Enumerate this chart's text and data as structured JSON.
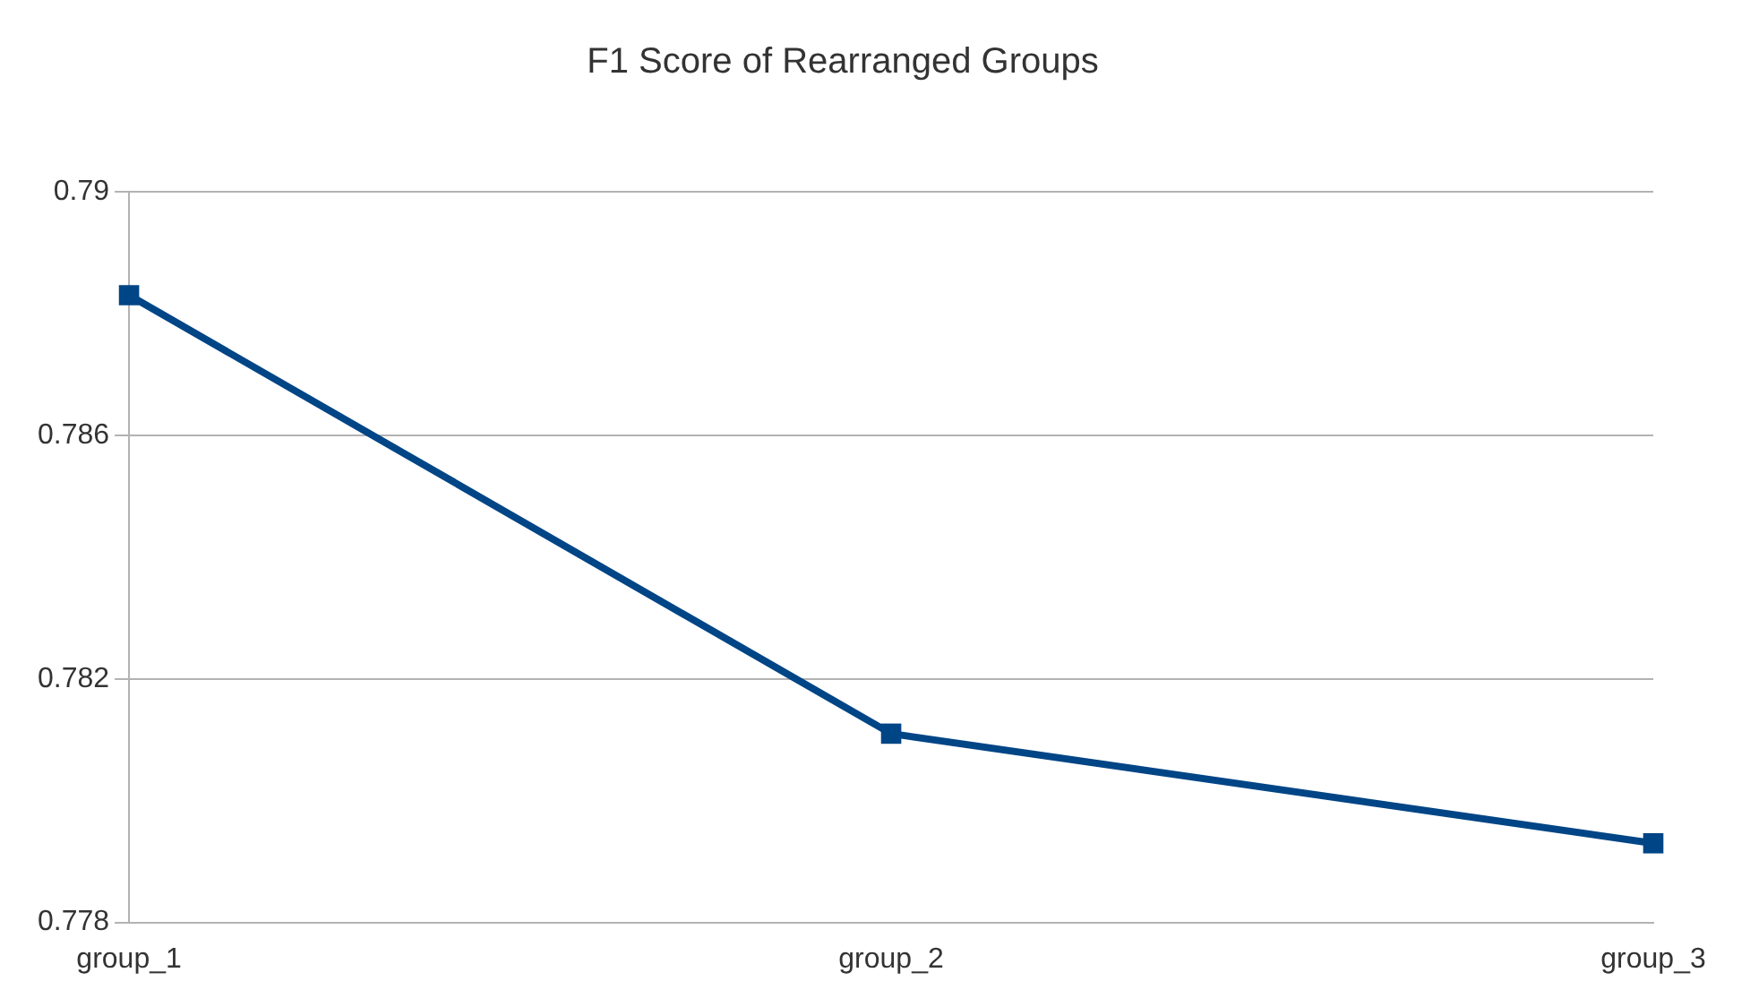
{
  "chart_data": {
    "type": "line",
    "title": "F1 Score of Rearranged Groups",
    "categories": [
      "group_1",
      "group_2",
      "group_3"
    ],
    "series": [
      {
        "color": "#004586",
        "values": [
          0.7883,
          0.7811,
          0.7793
        ]
      }
    ],
    "ylim": [
      0.778,
      0.79
    ],
    "yticks": [
      0.778,
      0.782,
      0.786,
      0.79
    ],
    "grid": "y",
    "legend": false,
    "marker": "square",
    "line_style": "solid"
  }
}
